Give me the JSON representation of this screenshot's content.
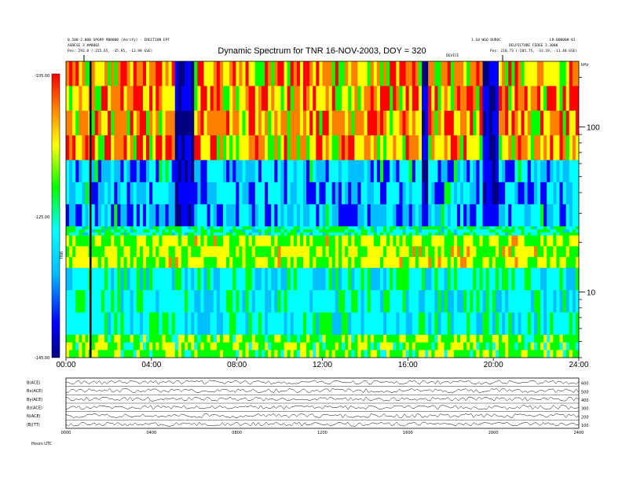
{
  "header": {
    "title": "Dynamic Spectrum for TNR 16-NOV-2003, DOY = 320",
    "left_line1": "0.500-2.000 SPGRP 900000 (Verify) - ERECTION EPF",
    "left_line2": "AGRESE 3 ##0002",
    "left_pos": "Pos:    293.0 (-225.65, -35.95, -13.90 GSE)",
    "right_line1": "1.10 WGO DUROC",
    "right_line2": "LR-B00000-01",
    "right_line3": "DELPICTURE FEDGE 3.3000",
    "right_pos": "Pos:    210.73 (-205.75, -33.19, -11.40 GSE)",
    "right_axis_label": "kHz",
    "marker_label": "DEVICE"
  },
  "chart_data": [
    {
      "type": "heatmap",
      "title": "Dynamic Spectrum for TNR 16-NOV-2003, DOY = 320",
      "xlabel": "",
      "ylabel": "",
      "x_ticks": [
        "00:00",
        "04:00",
        "08:00",
        "12:00",
        "16:00",
        "20:00",
        "24:00"
      ],
      "x_range_hours": [
        0,
        24
      ],
      "y_scale": "log",
      "y_unit": "kHz",
      "y_range_khz": [
        4,
        250
      ],
      "y_ticks": [
        "100",
        "10"
      ],
      "colorbar": {
        "label": "TNR",
        "ticks": [
          "-105.00",
          "-125.00",
          "-145.00"
        ],
        "range": [
          -145,
          -105
        ],
        "colors": [
          "#000080",
          "#0000ff",
          "#00bfff",
          "#00ffff",
          "#00ff00",
          "#ffff00",
          "#ff8000",
          "#ff0000"
        ]
      },
      "band_edge_khz": 63,
      "regions": {
        "upper_band_khz": [
          63,
          250
        ],
        "upper_band_dominant": "orange-red",
        "lower_band_dominant": "cyan",
        "dark_blue_band_khz": [
          25,
          63
        ],
        "yellow_band_khz": [
          14,
          22
        ],
        "bottom_yellow_band_khz": [
          4,
          5.5
        ]
      },
      "dark_events_hours": [
        {
          "start": 5.0,
          "end": 5.9
        },
        {
          "start": 16.6,
          "end": 16.9
        },
        {
          "start": 19.5,
          "end": 20.2
        }
      ],
      "vertical_line_hour": 1.15
    },
    {
      "type": "line",
      "panels": [
        "B(ACE)",
        "Bx(ACE)",
        "By(ACE)",
        "Bz(ACE)",
        "N(ACE)",
        "|B|(TT)"
      ],
      "x_ticks": [
        "0000",
        "0400",
        "0800",
        "1200",
        "1600",
        "2000",
        "2400"
      ],
      "right_ticks": [
        "100",
        "200",
        "300",
        "400",
        "500",
        "600"
      ],
      "footer": "Hours  UTC"
    }
  ]
}
